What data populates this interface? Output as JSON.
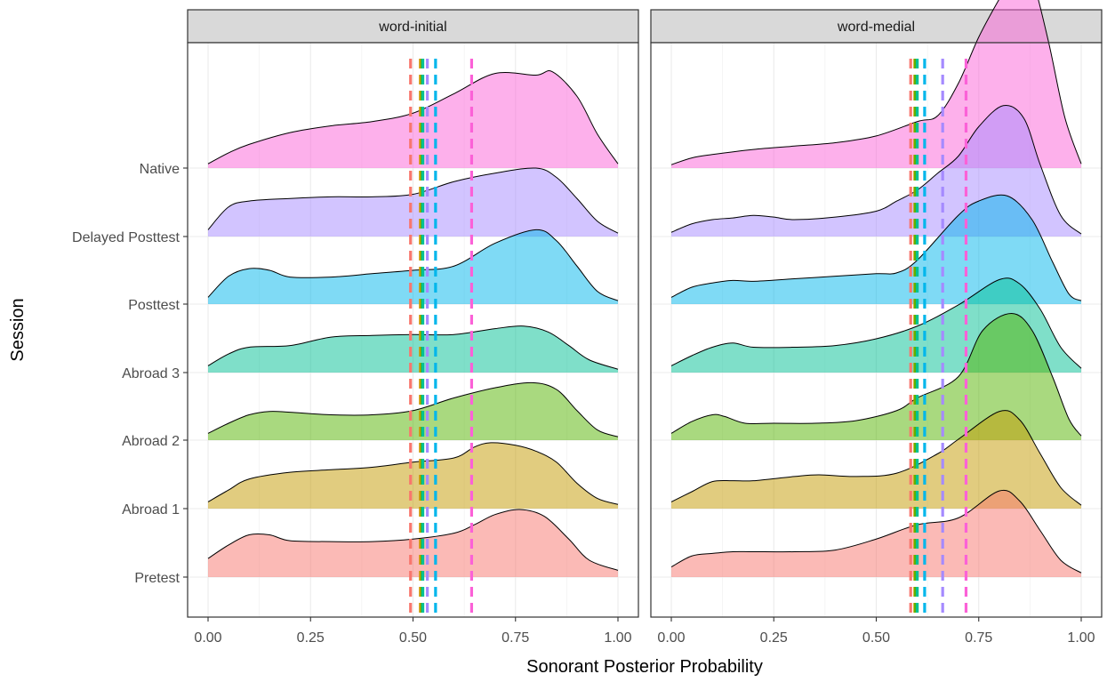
{
  "chart_data": {
    "type": "ridgeline-density",
    "xlabel": "Sonorant Posterior Probability",
    "ylabel": "Session",
    "xlim": [
      0,
      1
    ],
    "x_ticks": [
      "0.00",
      "0.25",
      "0.50",
      "0.75",
      "1.00"
    ],
    "x_tick_values": [
      0,
      0.25,
      0.5,
      0.75,
      1.0
    ],
    "grid": true,
    "legend": "none",
    "sessions": [
      "Pretest",
      "Abroad 1",
      "Abroad 2",
      "Abroad 3",
      "Posttest",
      "Delayed Posttest",
      "Native"
    ],
    "session_colors": {
      "Pretest": "#F8766D",
      "Abroad 1": "#C49A00",
      "Abroad 2": "#53B400",
      "Abroad 3": "#00C094",
      "Posttest": "#00B6EB",
      "Delayed Posttest": "#A58AFF",
      "Native": "#FB61D7"
    },
    "panels": [
      {
        "title": "word-initial",
        "means": {
          "Pretest": 0.494,
          "Abroad 1": 0.518,
          "Abroad 2": 0.522,
          "Abroad 3": 0.524,
          "Posttest": 0.555,
          "Delayed Posttest": 0.535,
          "Native": 0.643
        },
        "densities": {
          "Pretest": {
            "x": [
              0,
              0.05,
              0.1,
              0.15,
              0.2,
              0.3,
              0.4,
              0.5,
              0.6,
              0.65,
              0.7,
              0.76,
              0.82,
              0.88,
              0.93,
              1.0
            ],
            "height": [
              0.22,
              0.38,
              0.5,
              0.5,
              0.43,
              0.42,
              0.42,
              0.45,
              0.52,
              0.62,
              0.74,
              0.8,
              0.72,
              0.45,
              0.2,
              0.08
            ]
          },
          "Abroad 1": {
            "x": [
              0,
              0.05,
              0.1,
              0.2,
              0.3,
              0.4,
              0.5,
              0.6,
              0.65,
              0.69,
              0.75,
              0.8,
              0.85,
              0.9,
              0.95,
              1.0
            ],
            "height": [
              0.08,
              0.22,
              0.35,
              0.43,
              0.46,
              0.49,
              0.55,
              0.6,
              0.73,
              0.78,
              0.75,
              0.68,
              0.55,
              0.3,
              0.12,
              0.05
            ]
          },
          "Abroad 2": {
            "x": [
              0,
              0.05,
              0.1,
              0.15,
              0.2,
              0.3,
              0.4,
              0.5,
              0.6,
              0.7,
              0.79,
              0.85,
              0.9,
              0.95,
              1.0
            ],
            "height": [
              0.08,
              0.2,
              0.3,
              0.34,
              0.33,
              0.3,
              0.3,
              0.35,
              0.5,
              0.62,
              0.68,
              0.6,
              0.35,
              0.12,
              0.04
            ]
          },
          "Abroad 3": {
            "x": [
              0,
              0.05,
              0.1,
              0.2,
              0.3,
              0.4,
              0.5,
              0.6,
              0.7,
              0.77,
              0.83,
              0.88,
              0.93,
              1.0
            ],
            "height": [
              0.08,
              0.22,
              0.3,
              0.32,
              0.42,
              0.44,
              0.45,
              0.45,
              0.52,
              0.55,
              0.48,
              0.32,
              0.15,
              0.04
            ]
          },
          "Posttest": {
            "x": [
              0,
              0.05,
              0.1,
              0.15,
              0.2,
              0.3,
              0.4,
              0.5,
              0.6,
              0.7,
              0.8,
              0.85,
              0.9,
              0.95,
              1.0
            ],
            "height": [
              0.08,
              0.33,
              0.42,
              0.4,
              0.32,
              0.32,
              0.36,
              0.4,
              0.45,
              0.72,
              0.88,
              0.75,
              0.45,
              0.15,
              0.04
            ]
          },
          "Delayed Posttest": {
            "x": [
              0,
              0.05,
              0.1,
              0.2,
              0.3,
              0.4,
              0.5,
              0.6,
              0.7,
              0.8,
              0.85,
              0.9,
              0.95,
              1.0
            ],
            "height": [
              0.08,
              0.35,
              0.42,
              0.45,
              0.47,
              0.47,
              0.5,
              0.65,
              0.75,
              0.81,
              0.7,
              0.45,
              0.18,
              0.04
            ]
          },
          "Native": {
            "x": [
              0,
              0.05,
              0.1,
              0.2,
              0.3,
              0.4,
              0.5,
              0.6,
              0.7,
              0.8,
              0.84,
              0.9,
              0.95,
              1.0
            ],
            "height": [
              0.05,
              0.18,
              0.28,
              0.42,
              0.5,
              0.55,
              0.65,
              0.88,
              1.12,
              1.1,
              1.14,
              0.85,
              0.4,
              0.05
            ]
          }
        }
      },
      {
        "title": "word-medial",
        "means": {
          "Pretest": 0.584,
          "Abroad 1": 0.594,
          "Abroad 2": 0.596,
          "Abroad 3": 0.6,
          "Posttest": 0.618,
          "Delayed Posttest": 0.662,
          "Native": 0.719
        },
        "densities": {
          "Pretest": {
            "x": [
              0,
              0.05,
              0.1,
              0.15,
              0.2,
              0.3,
              0.4,
              0.5,
              0.6,
              0.7,
              0.8,
              0.85,
              0.9,
              0.95,
              1.0
            ],
            "height": [
              0.12,
              0.25,
              0.28,
              0.3,
              0.3,
              0.3,
              0.32,
              0.45,
              0.62,
              0.7,
              1.02,
              0.9,
              0.55,
              0.2,
              0.05
            ]
          },
          "Abroad 1": {
            "x": [
              0,
              0.05,
              0.1,
              0.15,
              0.2,
              0.3,
              0.36,
              0.45,
              0.55,
              0.65,
              0.7,
              0.8,
              0.85,
              0.9,
              0.95,
              1.0
            ],
            "height": [
              0.08,
              0.2,
              0.32,
              0.33,
              0.33,
              0.38,
              0.4,
              0.38,
              0.42,
              0.65,
              0.82,
              1.15,
              1.05,
              0.65,
              0.25,
              0.04
            ]
          },
          "Abroad 2": {
            "x": [
              0,
              0.05,
              0.1,
              0.13,
              0.18,
              0.25,
              0.35,
              0.45,
              0.55,
              0.6,
              0.7,
              0.76,
              0.83,
              0.88,
              0.93,
              0.97,
              1.0
            ],
            "height": [
              0.08,
              0.22,
              0.3,
              0.28,
              0.2,
              0.2,
              0.2,
              0.23,
              0.35,
              0.5,
              0.75,
              1.3,
              1.5,
              1.3,
              0.75,
              0.25,
              0.05
            ]
          },
          "Abroad 3": {
            "x": [
              0,
              0.05,
              0.1,
              0.15,
              0.2,
              0.3,
              0.4,
              0.5,
              0.6,
              0.7,
              0.8,
              0.85,
              0.9,
              0.95,
              1.0
            ],
            "height": [
              0.08,
              0.2,
              0.3,
              0.35,
              0.3,
              0.3,
              0.32,
              0.4,
              0.55,
              0.8,
              1.1,
              1.05,
              0.75,
              0.3,
              0.05
            ]
          },
          "Posttest": {
            "x": [
              0,
              0.05,
              0.1,
              0.15,
              0.2,
              0.3,
              0.4,
              0.5,
              0.55,
              0.6,
              0.7,
              0.75,
              0.82,
              0.88,
              0.93,
              0.97,
              1.0
            ],
            "height": [
              0.08,
              0.2,
              0.25,
              0.28,
              0.27,
              0.3,
              0.33,
              0.36,
              0.37,
              0.52,
              1.05,
              1.22,
              1.28,
              1.0,
              0.5,
              0.12,
              0.04
            ]
          },
          "Delayed Posttest": {
            "x": [
              0,
              0.05,
              0.1,
              0.15,
              0.2,
              0.25,
              0.3,
              0.4,
              0.5,
              0.55,
              0.6,
              0.65,
              0.7,
              0.75,
              0.81,
              0.86,
              0.9,
              0.95,
              1.0
            ],
            "height": [
              0.05,
              0.15,
              0.2,
              0.22,
              0.25,
              0.23,
              0.2,
              0.23,
              0.3,
              0.42,
              0.55,
              0.75,
              0.95,
              1.3,
              1.55,
              1.4,
              0.85,
              0.25,
              0.03
            ]
          },
          "Native": {
            "x": [
              0,
              0.05,
              0.1,
              0.2,
              0.3,
              0.4,
              0.5,
              0.6,
              0.65,
              0.7,
              0.75,
              0.8,
              0.85,
              0.88,
              0.92,
              0.96,
              1.0
            ],
            "height": [
              0.04,
              0.12,
              0.16,
              0.22,
              0.26,
              0.3,
              0.38,
              0.55,
              0.62,
              1.0,
              1.55,
              2.0,
              2.4,
              2.25,
              1.5,
              0.6,
              0.05
            ]
          }
        }
      }
    ]
  }
}
